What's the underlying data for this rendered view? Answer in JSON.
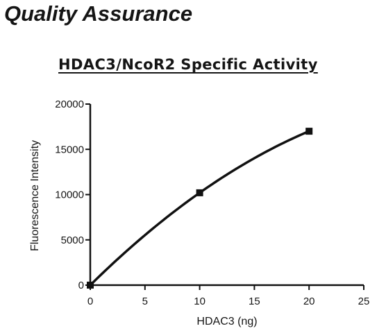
{
  "page": {
    "heading": "Quality Assurance"
  },
  "chart_data": {
    "type": "line",
    "title": "HDAC3/NcoR2 Specific Activity",
    "xlabel": "HDAC3 (ng)",
    "ylabel": "Fluorescence Intensity",
    "xlim": [
      0,
      25
    ],
    "ylim": [
      0,
      20000
    ],
    "xticks": [
      "0",
      "5",
      "10",
      "15",
      "20",
      "25"
    ],
    "yticks": [
      "0",
      "5000",
      "10000",
      "15000",
      "20000"
    ],
    "grid": false,
    "series": [
      {
        "x": [
          0,
          10,
          20
        ],
        "y": [
          0,
          10200,
          17000
        ],
        "marker": "square",
        "fit": "curve",
        "color": "#111111"
      }
    ]
  }
}
